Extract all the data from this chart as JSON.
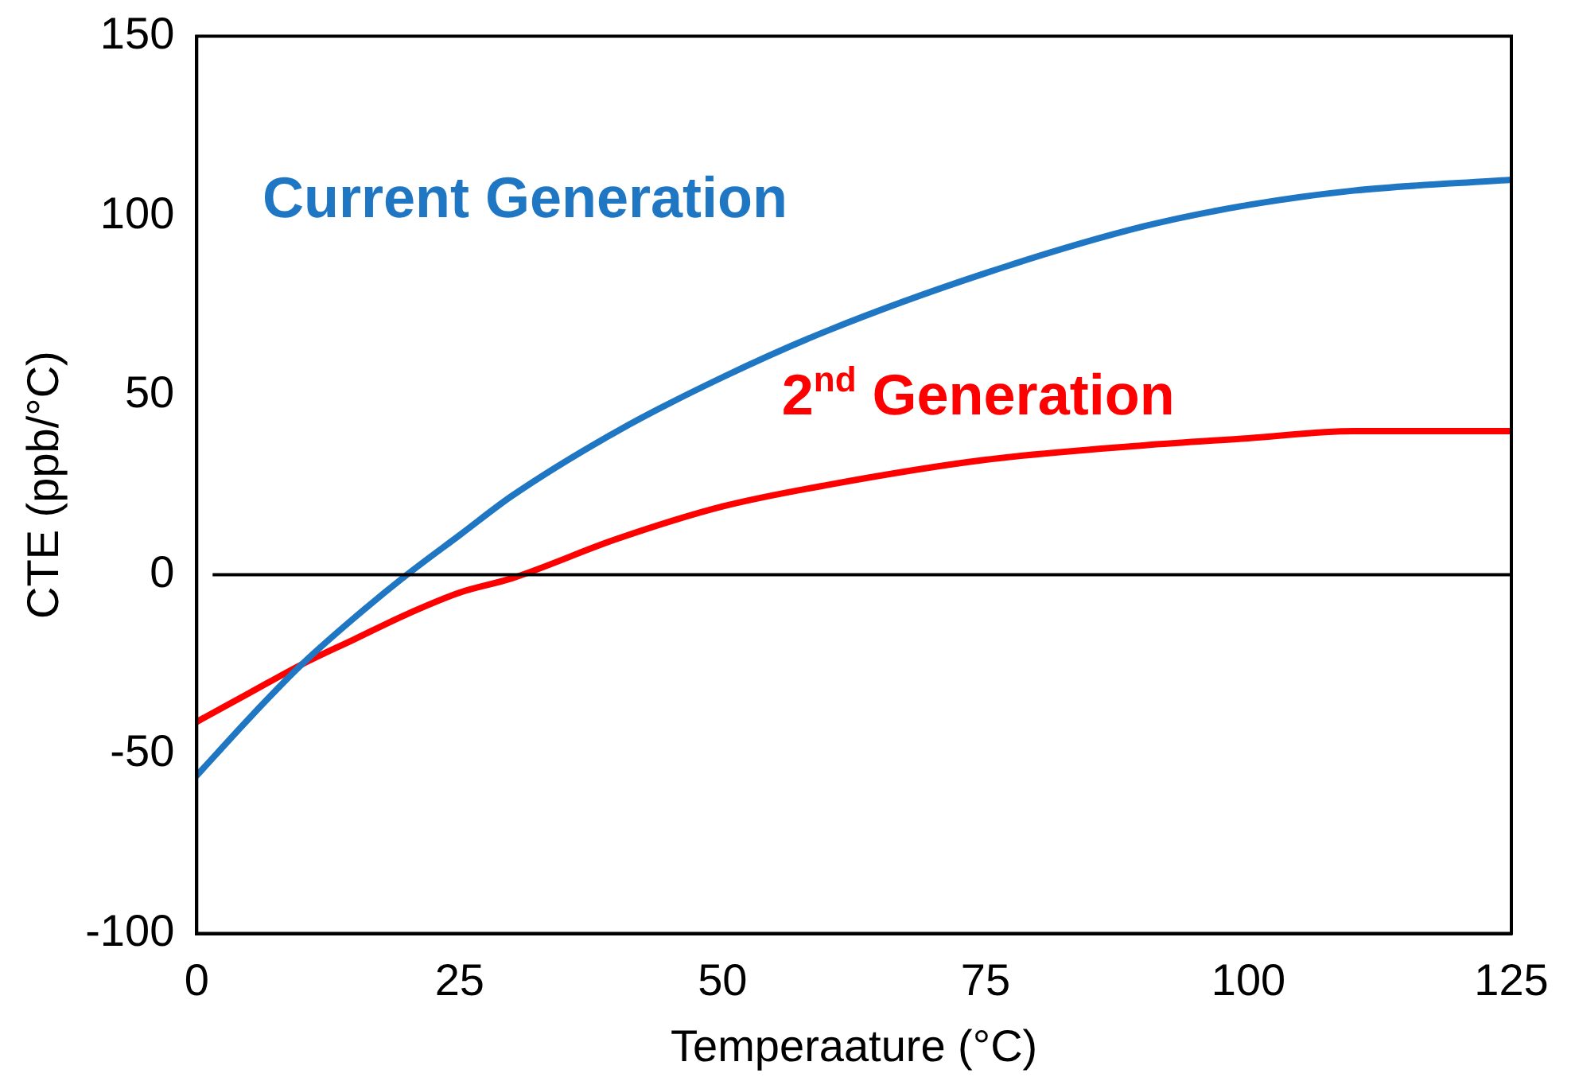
{
  "chart_data": {
    "type": "line",
    "xlabel": "Temperaature (°C)",
    "ylabel": "CTE (ppb/°C)",
    "xlim": [
      0,
      125
    ],
    "xticks": [
      0,
      25,
      50,
      75,
      100,
      125
    ],
    "ylim": [
      -100,
      150
    ],
    "yticks": [
      -100,
      -50,
      0,
      50,
      100,
      150
    ],
    "grid": false,
    "legend": false,
    "marker": "none",
    "line_style": "solid",
    "ref_lines": [
      {
        "axis": "y",
        "value": 0,
        "color": "#000000"
      }
    ],
    "series": [
      {
        "name": "Current Generation",
        "color": "#1f77c4",
        "x": [
          0,
          5,
          10,
          15,
          20,
          25,
          30,
          40,
          50,
          60,
          75,
          90,
          100,
          110,
          125
        ],
        "values": [
          -56,
          -40,
          -25,
          -12,
          0,
          11,
          22,
          40,
          55,
          68,
          84,
          97,
          103,
          107,
          110
        ]
      },
      {
        "name": "2$^{nd}$ Generation",
        "color": "#ff0000",
        "x": [
          0,
          5,
          10,
          15,
          20,
          25,
          30,
          40,
          50,
          60,
          75,
          90,
          100,
          110,
          125
        ],
        "values": [
          -41,
          -33,
          -25,
          -18,
          -11,
          -5,
          -1,
          10,
          19,
          25,
          32,
          36,
          38,
          40,
          40
        ]
      }
    ]
  }
}
